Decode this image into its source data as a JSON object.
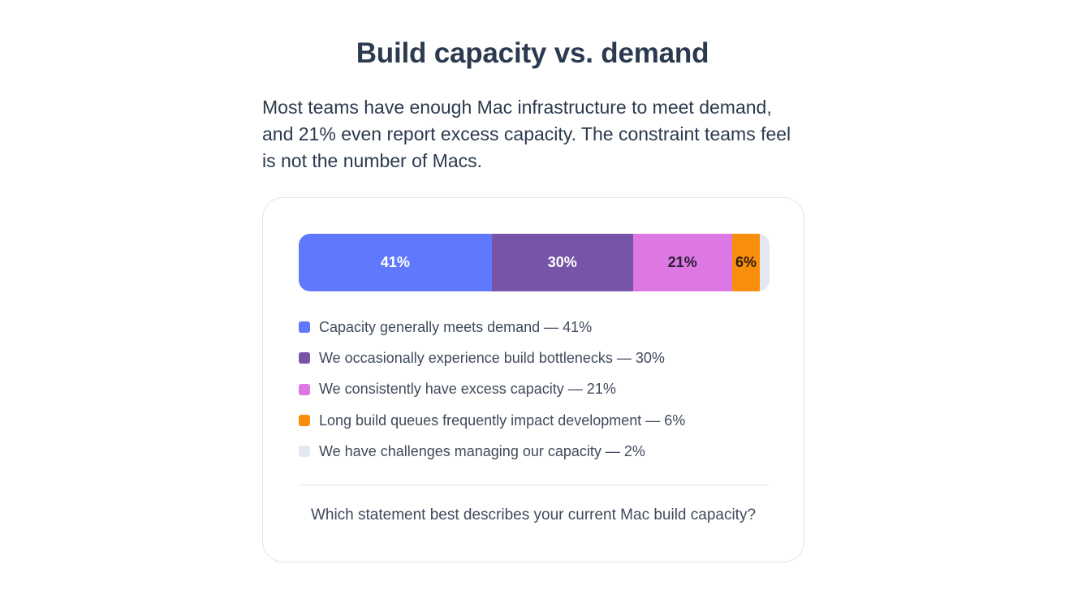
{
  "title": "Build capacity vs. demand",
  "intro": "Most teams have enough Mac infrastructure to meet demand, and 21% even report excess capacity. The constraint teams feel is not the number of Macs.",
  "question": "Which statement best describes your current Mac build capacity?",
  "chart_data": {
    "type": "bar",
    "orientation": "horizontal-stacked",
    "unit": "%",
    "series": [
      {
        "name": "Capacity generally meets demand",
        "value": 41,
        "label": "41%",
        "legend": "Capacity generally meets demand — 41%",
        "color": "#6078fb",
        "text_color": "#ffffff"
      },
      {
        "name": "We occasionally experience build bottlenecks",
        "value": 30,
        "label": "30%",
        "legend": "We occasionally experience build bottlenecks — 30%",
        "color": "#7655a8",
        "text_color": "#ffffff"
      },
      {
        "name": "We consistently have excess capacity",
        "value": 21,
        "label": "21%",
        "legend": "We consistently have excess capacity — 21%",
        "color": "#dd77e4",
        "text_color": "#2b1f33"
      },
      {
        "name": "Long build queues frequently impact development",
        "value": 6,
        "label": "6%",
        "legend": "Long build queues frequently impact development — 6%",
        "color": "#f98e0c",
        "text_color": "#2b1f0a"
      },
      {
        "name": "We have challenges managing our capacity",
        "value": 2,
        "label": "",
        "legend": "We have challenges managing our capacity — 2%",
        "color": "#e3e7f1",
        "text_color": "#2b3a4e"
      }
    ]
  }
}
